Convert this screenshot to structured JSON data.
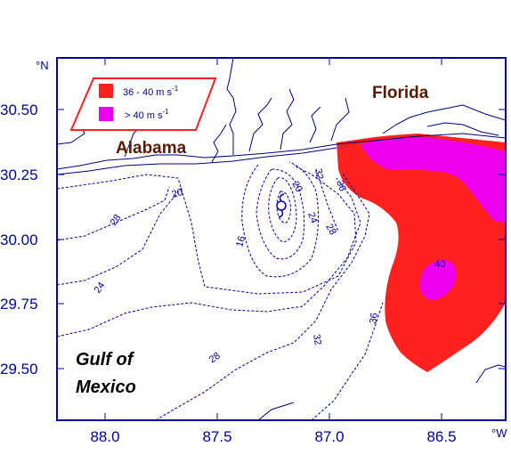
{
  "map": {
    "units": {
      "lat": "°N",
      "lon": "°W"
    },
    "lat_ticks": [
      "30.50",
      "30.25",
      "30.00",
      "29.75",
      "29.50"
    ],
    "lon_ticks": [
      "88.0",
      "87.5",
      "87.0",
      "86.5"
    ],
    "regions": {
      "florida": "Florida",
      "alabama": "Alabama",
      "gulf_line1": "Gulf of",
      "gulf_line2": "Mexico"
    },
    "legend": {
      "items": [
        {
          "label": "36 - 40 m s",
          "sup": "-1",
          "color": "#ff2020"
        },
        {
          "label": "> 40 m s",
          "sup": "-1",
          "color": "#ee00ee"
        }
      ]
    },
    "contour_labels": [
      "20",
      "28",
      "24",
      "16",
      "20",
      "32",
      "24",
      "28",
      "36",
      "40",
      "36",
      "32",
      "28"
    ],
    "colors": {
      "frame": "#0000a0",
      "coast": "#000080",
      "contour": "#0000a0",
      "wind_36_40": "#ff2020",
      "wind_gt_40": "#ee00ee"
    },
    "storm_symbol": "hurricane-center-icon"
  }
}
